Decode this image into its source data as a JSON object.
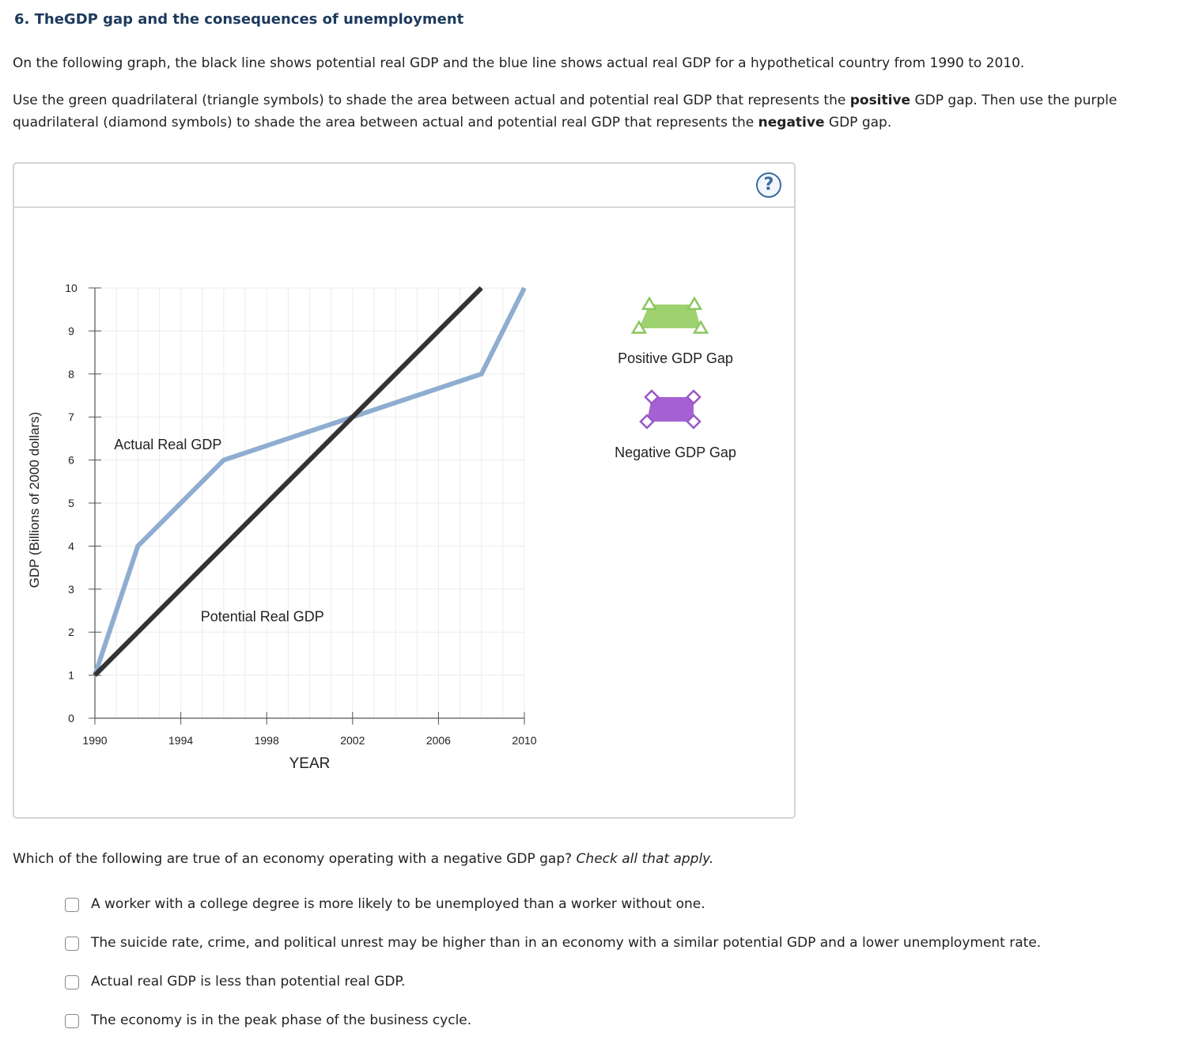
{
  "question": {
    "title": "6. TheGDP gap and the consequences of unemployment",
    "intro": "On the following graph, the black line shows potential real GDP and the blue line shows actual real GDP for a hypothetical country from 1990 to 2010.",
    "instruction_parts": [
      "Use the green quadrilateral (triangle symbols) to shade the area between actual and potential real GDP that represents the ",
      "positive",
      " GDP gap. Then use the purple quadrilateral (diamond symbols) to shade the area between actual and potential real GDP that represents the ",
      "negative",
      " GDP gap."
    ]
  },
  "graph": {
    "help_label": "?",
    "tools": [
      {
        "label": "Positive GDP Gap",
        "symbol": "triangle",
        "color": "#9ed16f",
        "outline": "#8cc75e"
      },
      {
        "label": "Negative GDP Gap",
        "symbol": "diamond",
        "color": "#a561d1",
        "outline": "#9a56c8"
      }
    ]
  },
  "chart_data": {
    "type": "line",
    "xlabel": "YEAR",
    "ylabel": "GDP (Billions of 2000 dollars)",
    "xlim": [
      1990,
      2010
    ],
    "ylim": [
      0,
      10
    ],
    "xticks": [
      1990,
      1994,
      1998,
      2002,
      2006,
      2010
    ],
    "yticks": [
      0,
      1,
      2,
      3,
      4,
      5,
      6,
      7,
      8,
      9,
      10
    ],
    "grid": true,
    "series": [
      {
        "name": "Potential Real GDP",
        "color": "#333333",
        "x": [
          1990,
          2008
        ],
        "y": [
          1,
          10
        ]
      },
      {
        "name": "Actual Real GDP",
        "color": "#8eadd0",
        "x": [
          1990,
          1992,
          1996,
          2002,
          2008,
          2010
        ],
        "y": [
          1,
          4,
          6,
          7,
          8,
          10
        ]
      }
    ]
  },
  "followup": {
    "prompt": "Which of the following are true of an economy operating with a negative GDP gap?",
    "prompt_hint": "Check all that apply.",
    "options": [
      "A worker with a college degree is more likely to be unemployed than a worker without one.",
      "The suicide rate, crime, and political unrest may be higher than in an economy with a similar potential GDP and a lower unemployment rate.",
      "Actual real GDP is less than potential real GDP.",
      "The economy is in the peak phase of the business cycle."
    ]
  }
}
